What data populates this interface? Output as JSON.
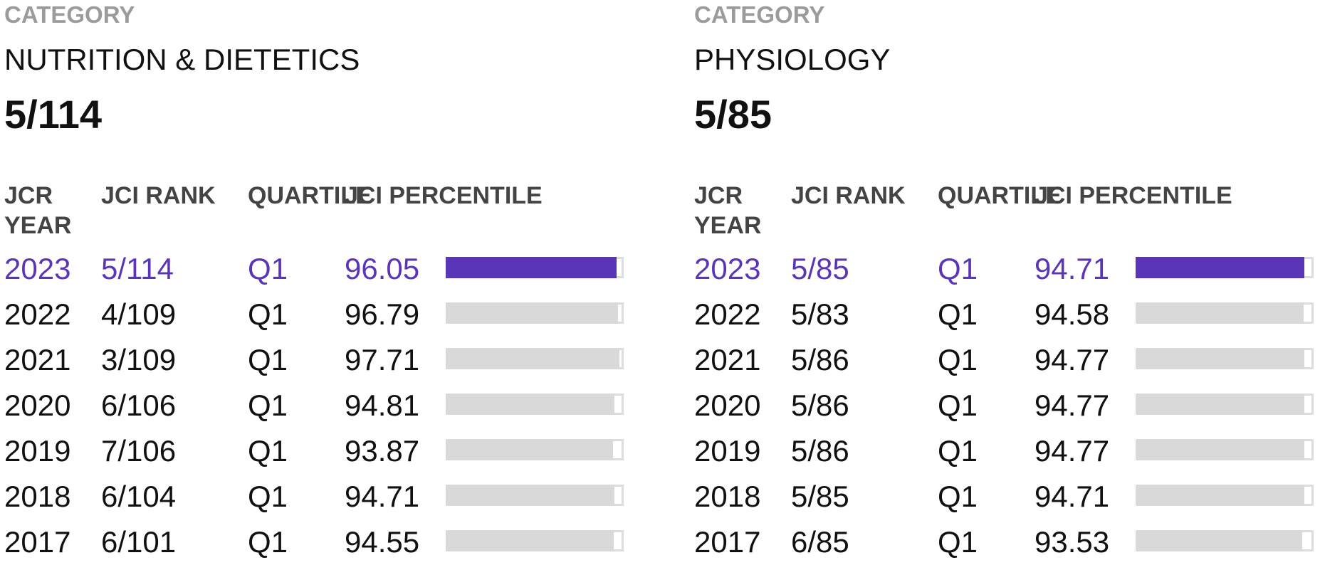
{
  "accent_color": "#5a35b8",
  "panels": [
    {
      "category_label": "CATEGORY",
      "category_name": "NUTRITION & DIETETICS",
      "category_rank": "5/114",
      "headers": {
        "year": "JCR YEAR",
        "rank": "JCI RANK",
        "quartile": "QUARTILE",
        "percentile": "JCI PERCENTILE"
      },
      "rows": [
        {
          "year": "2023",
          "rank": "5/114",
          "quartile": "Q1",
          "percentile": "96.05",
          "highlight": true
        },
        {
          "year": "2022",
          "rank": "4/109",
          "quartile": "Q1",
          "percentile": "96.79",
          "highlight": false
        },
        {
          "year": "2021",
          "rank": "3/109",
          "quartile": "Q1",
          "percentile": "97.71",
          "highlight": false
        },
        {
          "year": "2020",
          "rank": "6/106",
          "quartile": "Q1",
          "percentile": "94.81",
          "highlight": false
        },
        {
          "year": "2019",
          "rank": "7/106",
          "quartile": "Q1",
          "percentile": "93.87",
          "highlight": false
        },
        {
          "year": "2018",
          "rank": "6/104",
          "quartile": "Q1",
          "percentile": "94.71",
          "highlight": false
        },
        {
          "year": "2017",
          "rank": "6/101",
          "quartile": "Q1",
          "percentile": "94.55",
          "highlight": false
        }
      ]
    },
    {
      "category_label": "CATEGORY",
      "category_name": "PHYSIOLOGY",
      "category_rank": "5/85",
      "headers": {
        "year": "JCR YEAR",
        "rank": "JCI RANK",
        "quartile": "QUARTILE",
        "percentile": "JCI PERCENTILE"
      },
      "rows": [
        {
          "year": "2023",
          "rank": "5/85",
          "quartile": "Q1",
          "percentile": "94.71",
          "highlight": true
        },
        {
          "year": "2022",
          "rank": "5/83",
          "quartile": "Q1",
          "percentile": "94.58",
          "highlight": false
        },
        {
          "year": "2021",
          "rank": "5/86",
          "quartile": "Q1",
          "percentile": "94.77",
          "highlight": false
        },
        {
          "year": "2020",
          "rank": "5/86",
          "quartile": "Q1",
          "percentile": "94.77",
          "highlight": false
        },
        {
          "year": "2019",
          "rank": "5/86",
          "quartile": "Q1",
          "percentile": "94.77",
          "highlight": false
        },
        {
          "year": "2018",
          "rank": "5/85",
          "quartile": "Q1",
          "percentile": "94.71",
          "highlight": false
        },
        {
          "year": "2017",
          "rank": "6/85",
          "quartile": "Q1",
          "percentile": "93.53",
          "highlight": false
        }
      ]
    }
  ]
}
